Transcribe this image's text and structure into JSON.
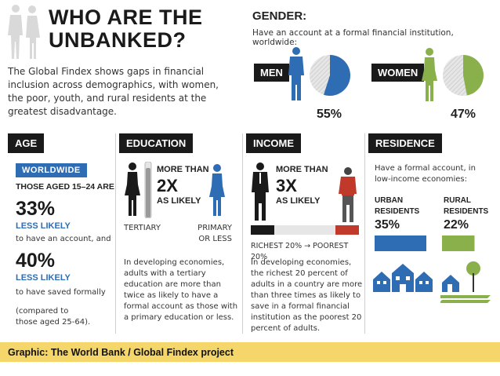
{
  "header": {
    "title_line1": "WHO ARE THE",
    "title_line2": "UNBANKED?",
    "intro": "The Global Findex shows gaps in financial inclusion across demographics, with women, the poor, youth, and rural residents at the greatest disadvantage."
  },
  "gender": {
    "title": "GENDER:",
    "subtitle": "Have an account at a formal financial institution, worldwide:",
    "men_label": "MEN",
    "women_label": "WOMEN",
    "men_pct": "55%",
    "women_pct": "47%"
  },
  "age": {
    "tag": "AGE",
    "badge": "WORLDWIDE",
    "line1": "THOSE AGED 15–24 ARE",
    "num1": "33%",
    "less1": "LESS LIKELY",
    "desc1": "to have an account, and",
    "num2": "40%",
    "less2": "LESS LIKELY",
    "desc2": "to have saved formally",
    "compare1": "(compared to",
    "compare2": "those aged 25-64)."
  },
  "education": {
    "tag": "EDUCATION",
    "more_than": "MORE THAN",
    "mult": "2X",
    "as_likely": "AS LIKELY",
    "left_label": "TERTIARY",
    "right_label1": "PRIMARY",
    "right_label2": "OR LESS",
    "body": "In developing economies, adults with a tertiary education are more than twice as likely to have a formal account as those with a primary education or less."
  },
  "income": {
    "tag": "INCOME",
    "more_than": "MORE THAN",
    "mult": "3X",
    "as_likely": "AS LIKELY",
    "scale_label": "RICHEST 20% → POOREST 20%",
    "body": "In developing economies, the richest 20 percent of adults in a country are more than three times as likely to save in a formal financial institution as the poorest 20 percent of adults."
  },
  "residence": {
    "tag": "RESIDENCE",
    "intro": "Have a formal account, in low-income economies:",
    "urban1": "URBAN",
    "urban2": "RESIDENTS",
    "rural1": "RURAL",
    "rural2": "RESIDENTS",
    "urban_pct": "35%",
    "rural_pct": "22%"
  },
  "footer": {
    "credit": "Graphic: The World Bank / Global Findex project"
  },
  "colors": {
    "men": "#2e6db3",
    "women": "#8ab04b",
    "dark": "#1a1a1a",
    "red": "#c0392b",
    "footer_bg": "#f5d66b"
  },
  "chart_data": [
    {
      "type": "pie",
      "categories": [
        "MEN"
      ],
      "values": [
        55
      ],
      "labels": [
        "55%"
      ]
    },
    {
      "type": "pie",
      "categories": [
        "WOMEN"
      ],
      "values": [
        47
      ],
      "labels": [
        "47%"
      ]
    },
    {
      "type": "bar",
      "categories": [
        "URBAN RESIDENTS",
        "RURAL RESIDENTS"
      ],
      "values": [
        35,
        22
      ],
      "labels": [
        "35%",
        "22%"
      ]
    }
  ]
}
